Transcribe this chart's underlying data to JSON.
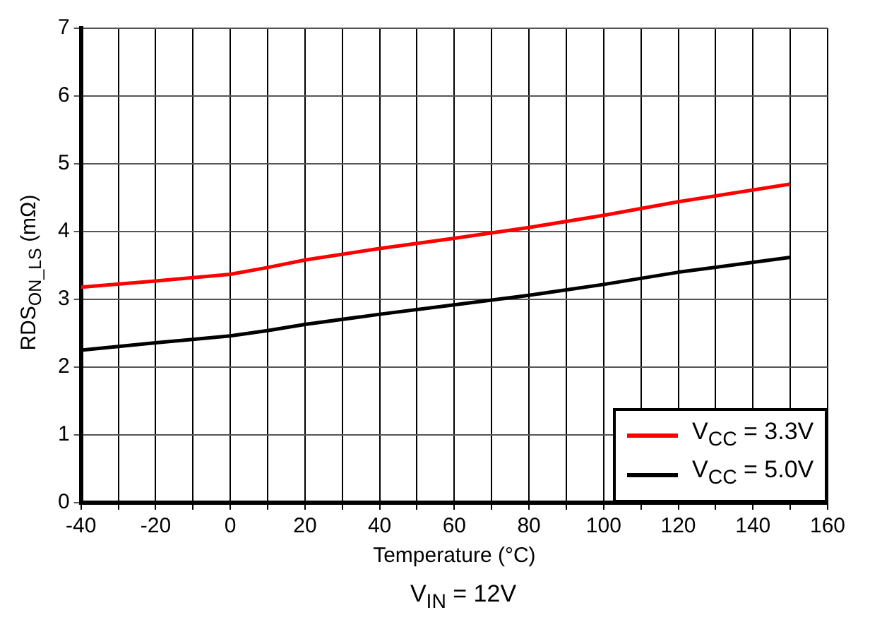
{
  "chart_data": {
    "type": "line",
    "xlabel": "Temperature (°C)",
    "ylabel": "RDS$_{ON_LS}$ (mΩ)",
    "annotations": [
      "V$_{IN}$ = 12V"
    ],
    "x": [
      -40,
      -20,
      0,
      10,
      20,
      40,
      60,
      80,
      100,
      120,
      150
    ],
    "series": [
      {
        "name": "V$_{CC}$ = 3.3V",
        "color": "#ff0000",
        "values": [
          3.18,
          3.27,
          3.37,
          3.47,
          3.58,
          3.75,
          3.9,
          4.06,
          4.24,
          4.44,
          4.7
        ]
      },
      {
        "name": "V$_{CC}$ = 5.0V",
        "color": "#000000",
        "values": [
          2.25,
          2.36,
          2.46,
          2.54,
          2.63,
          2.78,
          2.92,
          3.06,
          3.22,
          3.4,
          3.62
        ]
      }
    ],
    "xlim": [
      -40,
      160
    ],
    "xticks": [
      -40,
      {
        "value": -30,
        "label": null
      },
      -20,
      {
        "value": -10,
        "label": null
      },
      0,
      {
        "value": 10,
        "label": null
      },
      20,
      {
        "value": 30,
        "label": null
      },
      40,
      {
        "value": 50,
        "label": null
      },
      60,
      {
        "value": 70,
        "label": null
      },
      80,
      {
        "value": 90,
        "label": null
      },
      100,
      {
        "value": 110,
        "label": null
      },
      120,
      {
        "value": 130,
        "label": null
      },
      140,
      {
        "value": 150,
        "label": null
      },
      160
    ],
    "ylim": [
      0,
      7
    ],
    "yticks": [
      0,
      1,
      2,
      3,
      4,
      5,
      6,
      7
    ],
    "grid": true,
    "legend": "bottom right",
    "marker": "none",
    "line_style": "solid"
  }
}
